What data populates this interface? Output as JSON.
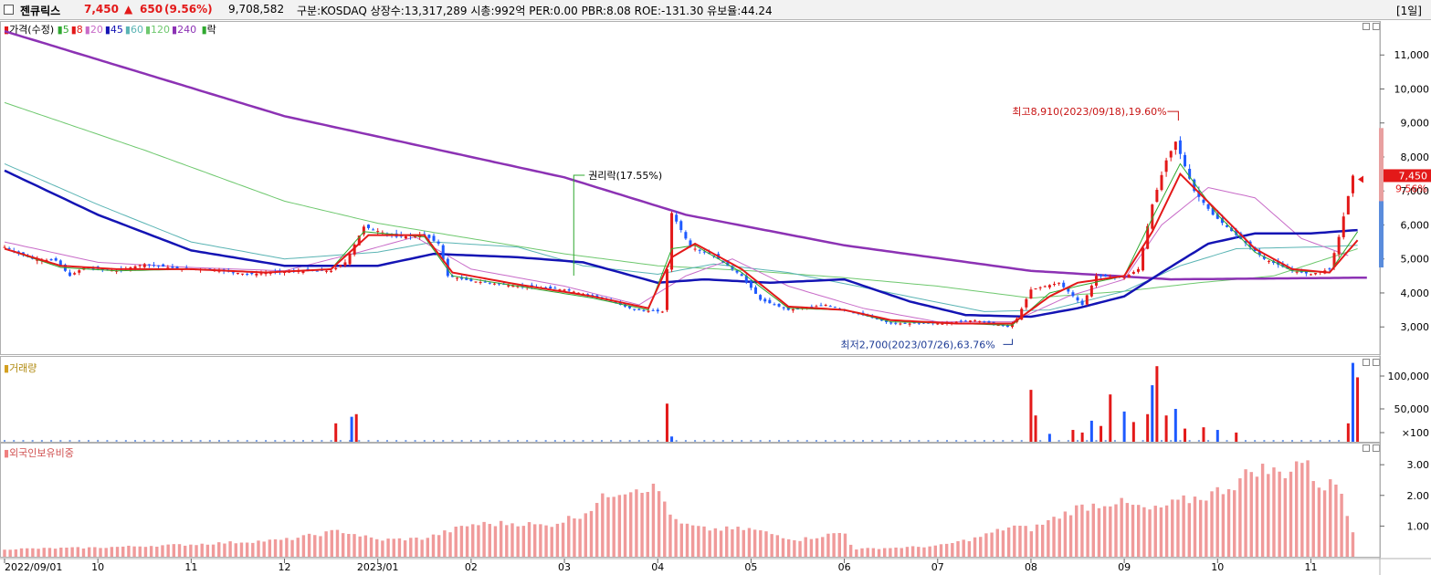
{
  "header": {
    "name": "젠큐릭스",
    "price": "7,450",
    "change_arrow": "▲",
    "change": "650",
    "change_pct": "(9.56%)",
    "volume": "9,708,582",
    "info": "구분:KOSDAQ  상장수:13,317,289  시총:992억  PER:0.00  PBR:8.08  ROE:-131.30  유보율:44.24",
    "period": "[1일]"
  },
  "legend": {
    "price_label": "가격(수정)",
    "ma": [
      {
        "label": "5",
        "color": "#2fa82f"
      },
      {
        "label": "8",
        "color": "#e31919"
      },
      {
        "label": "20",
        "color": "#c86bc8"
      },
      {
        "label": "45",
        "color": "#1414b4"
      },
      {
        "label": "60",
        "color": "#5ab4b4"
      },
      {
        "label": "120",
        "color": "#6ec86e"
      },
      {
        "label": "240",
        "color": "#8c32b4"
      }
    ],
    "rak_label": "락"
  },
  "panes": {
    "volume_label": "거래량",
    "foreign_label": "외국인보유비중"
  },
  "annotations": {
    "rights": "권리락(17.55%)",
    "high": "최고8,910(2023/09/18),19.60%",
    "low": "최저2,700(2023/07/26),63.76%",
    "current_price": "7,450",
    "current_pct": "9.56%"
  },
  "chart_data": [
    {
      "type": "candlestick",
      "title": "",
      "y_ticks": [
        3000,
        4000,
        5000,
        6000,
        7000,
        8000,
        9000,
        10000,
        11000
      ],
      "y_tick_labels": [
        "3,000",
        "4,000",
        "5,000",
        "6,000",
        "7,000",
        "8,000",
        "9,000",
        "10,000",
        "11,000"
      ],
      "ylim": [
        2200,
        12000
      ],
      "x_tick_labels": [
        "2022/09/01",
        "10",
        "11",
        "12",
        "2023/01",
        "02",
        "03",
        "04",
        "05",
        "06",
        "07",
        "08",
        "09",
        "10",
        "11"
      ],
      "x_tick_month_index": [
        0,
        1,
        2,
        3,
        4,
        5,
        6,
        7,
        8,
        9,
        10,
        11,
        12,
        13,
        14
      ],
      "month_range": [
        0,
        14.7
      ],
      "price_path": [
        [
          0.0,
          5350
        ],
        [
          0.3,
          5000
        ],
        [
          0.55,
          4950
        ],
        [
          0.7,
          4500
        ],
        [
          0.85,
          4750
        ],
        [
          1.2,
          4650
        ],
        [
          1.5,
          4850
        ],
        [
          1.9,
          4700
        ],
        [
          2.2,
          4700
        ],
        [
          2.6,
          4550
        ],
        [
          2.9,
          4600
        ],
        [
          3.2,
          4650
        ],
        [
          3.5,
          4650
        ],
        [
          3.65,
          4900
        ],
        [
          3.85,
          5950
        ],
        [
          4.2,
          5650
        ],
        [
          4.5,
          5700
        ],
        [
          4.65,
          5450
        ],
        [
          4.75,
          4500
        ],
        [
          5.0,
          4350
        ],
        [
          5.5,
          4200
        ],
        [
          6.0,
          4100
        ],
        [
          6.4,
          3850
        ],
        [
          6.75,
          3500
        ],
        [
          7.05,
          3450
        ],
        [
          7.1,
          4700
        ],
        [
          7.15,
          6350
        ],
        [
          7.35,
          5350
        ],
        [
          7.6,
          5100
        ],
        [
          7.9,
          4500
        ],
        [
          8.1,
          3800
        ],
        [
          8.4,
          3500
        ],
        [
          8.8,
          3650
        ],
        [
          9.2,
          3350
        ],
        [
          9.5,
          3100
        ],
        [
          10.0,
          3100
        ],
        [
          10.4,
          3200
        ],
        [
          10.75,
          3000
        ],
        [
          10.85,
          3250
        ],
        [
          11.0,
          4100
        ],
        [
          11.3,
          4300
        ],
        [
          11.55,
          3650
        ],
        [
          11.7,
          4500
        ],
        [
          12.0,
          4450
        ],
        [
          12.15,
          4700
        ],
        [
          12.3,
          6600
        ],
        [
          12.45,
          7900
        ],
        [
          12.55,
          8450
        ],
        [
          12.75,
          7000
        ],
        [
          12.95,
          6300
        ],
        [
          13.2,
          5700
        ],
        [
          13.5,
          5000
        ],
        [
          13.8,
          4650
        ],
        [
          14.0,
          4550
        ],
        [
          14.2,
          4700
        ],
        [
          14.3,
          5650
        ],
        [
          14.45,
          7450
        ]
      ],
      "high": {
        "value": 8910,
        "date": "2023/09/18",
        "month_pos": 12.58
      },
      "low": {
        "value": 2700,
        "date": "2023/07/26",
        "month_pos": 10.8
      },
      "rights_month_pos": 6.1,
      "current": 7450,
      "ma240_path": [
        [
          0.0,
          11700
        ],
        [
          3.0,
          9200
        ],
        [
          6.0,
          7400
        ],
        [
          7.3,
          6300
        ],
        [
          9.0,
          5400
        ],
        [
          11.0,
          4650
        ],
        [
          12.5,
          4400
        ],
        [
          14.6,
          4450
        ]
      ],
      "ma45_path": [
        [
          0.0,
          7600
        ],
        [
          1.0,
          6300
        ],
        [
          2.0,
          5250
        ],
        [
          3.0,
          4800
        ],
        [
          4.0,
          4800
        ],
        [
          4.6,
          5150
        ],
        [
          5.5,
          5050
        ],
        [
          6.2,
          4900
        ],
        [
          7.0,
          4300
        ],
        [
          7.5,
          4400
        ],
        [
          8.2,
          4300
        ],
        [
          9.0,
          4400
        ],
        [
          9.7,
          3750
        ],
        [
          10.3,
          3350
        ],
        [
          11.0,
          3300
        ],
        [
          11.5,
          3550
        ],
        [
          12.0,
          3900
        ],
        [
          12.4,
          4600
        ],
        [
          12.9,
          5450
        ],
        [
          13.4,
          5750
        ],
        [
          14.0,
          5750
        ],
        [
          14.5,
          5850
        ]
      ],
      "ma120_path": [
        [
          0.0,
          9600
        ],
        [
          1.5,
          8200
        ],
        [
          3.0,
          6700
        ],
        [
          4.0,
          6050
        ],
        [
          5.0,
          5600
        ],
        [
          6.0,
          5150
        ],
        [
          7.0,
          4800
        ],
        [
          8.0,
          4650
        ],
        [
          9.0,
          4450
        ],
        [
          10.0,
          4200
        ],
        [
          11.0,
          3850
        ],
        [
          12.0,
          4050
        ],
        [
          12.8,
          4300
        ],
        [
          13.6,
          4500
        ],
        [
          14.5,
          5300
        ]
      ],
      "ma60_path": [
        [
          0.0,
          7800
        ],
        [
          1.0,
          6600
        ],
        [
          2.0,
          5500
        ],
        [
          3.0,
          5000
        ],
        [
          4.0,
          5200
        ],
        [
          4.6,
          5500
        ],
        [
          5.5,
          5350
        ],
        [
          6.2,
          4800
        ],
        [
          7.0,
          4550
        ],
        [
          7.6,
          4850
        ],
        [
          8.4,
          4600
        ],
        [
          9.5,
          4000
        ],
        [
          10.5,
          3450
        ],
        [
          11.2,
          3500
        ],
        [
          12.0,
          4050
        ],
        [
          12.6,
          4800
        ],
        [
          13.2,
          5300
        ],
        [
          14.0,
          5350
        ],
        [
          14.5,
          5400
        ]
      ],
      "ma20_path": [
        [
          0.0,
          5500
        ],
        [
          1.0,
          4900
        ],
        [
          2.0,
          4750
        ],
        [
          3.0,
          4650
        ],
        [
          3.8,
          5200
        ],
        [
          4.4,
          5650
        ],
        [
          5.0,
          4700
        ],
        [
          6.0,
          4200
        ],
        [
          6.8,
          3650
        ],
        [
          7.3,
          4500
        ],
        [
          7.8,
          5000
        ],
        [
          8.4,
          4200
        ],
        [
          9.2,
          3550
        ],
        [
          10.0,
          3150
        ],
        [
          10.8,
          3150
        ],
        [
          11.4,
          3900
        ],
        [
          12.0,
          4400
        ],
        [
          12.4,
          6000
        ],
        [
          12.9,
          7100
        ],
        [
          13.4,
          6800
        ],
        [
          13.9,
          5600
        ],
        [
          14.4,
          5100
        ]
      ],
      "ma8_path": [
        [
          0.0,
          5300
        ],
        [
          0.6,
          4800
        ],
        [
          1.2,
          4700
        ],
        [
          2.0,
          4700
        ],
        [
          2.8,
          4600
        ],
        [
          3.5,
          4700
        ],
        [
          3.9,
          5700
        ],
        [
          4.5,
          5700
        ],
        [
          4.8,
          4600
        ],
        [
          5.5,
          4250
        ],
        [
          6.3,
          3900
        ],
        [
          6.9,
          3550
        ],
        [
          7.15,
          5050
        ],
        [
          7.4,
          5450
        ],
        [
          7.9,
          4700
        ],
        [
          8.4,
          3600
        ],
        [
          9.0,
          3500
        ],
        [
          9.5,
          3200
        ],
        [
          10.2,
          3100
        ],
        [
          10.8,
          3100
        ],
        [
          11.2,
          3900
        ],
        [
          11.5,
          4300
        ],
        [
          12.0,
          4500
        ],
        [
          12.3,
          5800
        ],
        [
          12.6,
          7500
        ],
        [
          13.0,
          6400
        ],
        [
          13.4,
          5300
        ],
        [
          13.8,
          4700
        ],
        [
          14.2,
          4600
        ],
        [
          14.5,
          5550
        ]
      ],
      "ma5_path": [
        [
          0.0,
          5300
        ],
        [
          0.6,
          4750
        ],
        [
          1.2,
          4650
        ],
        [
          2.0,
          4700
        ],
        [
          2.8,
          4600
        ],
        [
          3.5,
          4700
        ],
        [
          3.85,
          5800
        ],
        [
          4.5,
          5650
        ],
        [
          4.8,
          4500
        ],
        [
          5.5,
          4200
        ],
        [
          6.3,
          3850
        ],
        [
          6.9,
          3500
        ],
        [
          7.15,
          5300
        ],
        [
          7.4,
          5400
        ],
        [
          7.9,
          4600
        ],
        [
          8.4,
          3550
        ],
        [
          9.0,
          3500
        ],
        [
          9.5,
          3150
        ],
        [
          10.2,
          3100
        ],
        [
          10.8,
          3050
        ],
        [
          11.2,
          4000
        ],
        [
          11.5,
          4200
        ],
        [
          12.0,
          4500
        ],
        [
          12.3,
          6200
        ],
        [
          12.6,
          7800
        ],
        [
          13.0,
          6300
        ],
        [
          13.4,
          5200
        ],
        [
          13.8,
          4650
        ],
        [
          14.2,
          4600
        ],
        [
          14.5,
          5800
        ]
      ]
    },
    {
      "type": "bar",
      "title": "거래량",
      "y_ticks": [
        100,
        50000,
        100000
      ],
      "y_tick_labels": [
        "×100",
        "50,000",
        "100,000"
      ],
      "ylim": [
        0,
        125000
      ],
      "spikes": [
        [
          3.55,
          28000
        ],
        [
          3.72,
          38000
        ],
        [
          3.77,
          42000
        ],
        [
          7.1,
          58000
        ],
        [
          7.15,
          8000
        ],
        [
          11.0,
          79000
        ],
        [
          11.05,
          40000
        ],
        [
          11.2,
          12000
        ],
        [
          11.45,
          18000
        ],
        [
          11.55,
          14000
        ],
        [
          11.65,
          32000
        ],
        [
          11.75,
          24000
        ],
        [
          11.85,
          72000
        ],
        [
          12.0,
          46000
        ],
        [
          12.1,
          30000
        ],
        [
          12.25,
          42000
        ],
        [
          12.3,
          86000
        ],
        [
          12.35,
          115000
        ],
        [
          12.45,
          40000
        ],
        [
          12.55,
          50000
        ],
        [
          12.65,
          20000
        ],
        [
          12.85,
          22000
        ],
        [
          13.0,
          18000
        ],
        [
          13.2,
          14000
        ],
        [
          14.4,
          28000
        ],
        [
          14.45,
          120000
        ],
        [
          14.5,
          98000
        ]
      ]
    },
    {
      "type": "bar",
      "title": "외국인보유비중",
      "y_ticks": [
        1.0,
        2.0,
        3.0
      ],
      "y_tick_labels": [
        "1.00",
        "2.00",
        "3.00"
      ],
      "ylim": [
        0,
        3.6
      ],
      "profile": [
        [
          0.0,
          0.25
        ],
        [
          1.0,
          0.3
        ],
        [
          2.0,
          0.4
        ],
        [
          3.0,
          0.55
        ],
        [
          3.6,
          0.85
        ],
        [
          4.0,
          0.55
        ],
        [
          4.5,
          0.6
        ],
        [
          5.0,
          1.05
        ],
        [
          5.5,
          1.1
        ],
        [
          5.8,
          1.0
        ],
        [
          6.2,
          1.4
        ],
        [
          6.5,
          2.1
        ],
        [
          6.8,
          2.3
        ],
        [
          7.0,
          2.2
        ],
        [
          7.2,
          1.1
        ],
        [
          7.5,
          0.9
        ],
        [
          8.0,
          0.9
        ],
        [
          8.5,
          0.55
        ],
        [
          9.0,
          0.8
        ],
        [
          9.1,
          0.25
        ],
        [
          9.6,
          0.3
        ],
        [
          10.0,
          0.35
        ],
        [
          10.4,
          0.6
        ],
        [
          10.8,
          1.0
        ],
        [
          11.0,
          0.9
        ],
        [
          11.5,
          1.6
        ],
        [
          11.9,
          1.8
        ],
        [
          12.3,
          1.5
        ],
        [
          12.6,
          1.8
        ],
        [
          12.9,
          2.0
        ],
        [
          13.2,
          2.4
        ],
        [
          13.4,
          2.9
        ],
        [
          13.7,
          2.7
        ],
        [
          13.9,
          3.2
        ],
        [
          14.1,
          2.3
        ],
        [
          14.3,
          2.4
        ],
        [
          14.45,
          0.85
        ],
        [
          14.5,
          0.15
        ]
      ]
    }
  ]
}
